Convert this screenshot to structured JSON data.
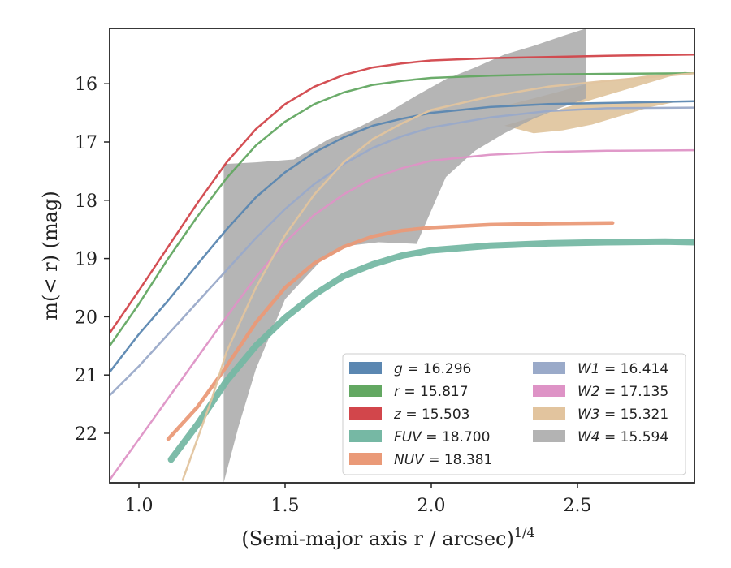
{
  "chart_data": {
    "type": "line",
    "title": "",
    "xlabel": "(Semi-major axis r / arcsec)",
    "xlabel_exponent": "1/4",
    "ylabel": "m(< r) (mag)",
    "xlim": [
      0.9,
      2.9
    ],
    "ylim": [
      22.85,
      15.05
    ],
    "y_inverted": true,
    "x_ticks": [
      {
        "value": 1.0,
        "label": "1.0"
      },
      {
        "value": 1.5,
        "label": "1.5"
      },
      {
        "value": 2.0,
        "label": "2.0"
      },
      {
        "value": 2.5,
        "label": "2.5"
      }
    ],
    "y_ticks": [
      {
        "value": 16,
        "label": "16"
      },
      {
        "value": 17,
        "label": "17"
      },
      {
        "value": 18,
        "label": "18"
      },
      {
        "value": 19,
        "label": "19"
      },
      {
        "value": 20,
        "label": "20"
      },
      {
        "value": 21,
        "label": "21"
      },
      {
        "value": 22,
        "label": "22"
      }
    ],
    "grid": false,
    "legend_position": "lower-right",
    "series": [
      {
        "name": "g",
        "label_value": "16.296",
        "color": "#5b87b1",
        "width": 2.5,
        "points": [
          [
            0.9,
            20.95
          ],
          [
            1.0,
            20.3
          ],
          [
            1.1,
            19.72
          ],
          [
            1.2,
            19.1
          ],
          [
            1.3,
            18.5
          ],
          [
            1.4,
            17.95
          ],
          [
            1.5,
            17.52
          ],
          [
            1.6,
            17.18
          ],
          [
            1.7,
            16.92
          ],
          [
            1.8,
            16.72
          ],
          [
            1.9,
            16.6
          ],
          [
            2.0,
            16.5
          ],
          [
            2.2,
            16.4
          ],
          [
            2.4,
            16.35
          ],
          [
            2.6,
            16.33
          ],
          [
            2.9,
            16.3
          ]
        ]
      },
      {
        "name": "r",
        "label_value": "15.817",
        "color": "#63a862",
        "width": 2.5,
        "points": [
          [
            0.9,
            20.5
          ],
          [
            1.0,
            19.78
          ],
          [
            1.1,
            19.0
          ],
          [
            1.2,
            18.28
          ],
          [
            1.3,
            17.62
          ],
          [
            1.4,
            17.06
          ],
          [
            1.5,
            16.65
          ],
          [
            1.6,
            16.35
          ],
          [
            1.7,
            16.15
          ],
          [
            1.8,
            16.02
          ],
          [
            1.9,
            15.95
          ],
          [
            2.0,
            15.9
          ],
          [
            2.2,
            15.86
          ],
          [
            2.4,
            15.84
          ],
          [
            2.6,
            15.83
          ],
          [
            2.9,
            15.82
          ]
        ]
      },
      {
        "name": "z",
        "label_value": "15.503",
        "color": "#d2464b",
        "width": 2.5,
        "points": [
          [
            0.9,
            20.28
          ],
          [
            1.0,
            19.55
          ],
          [
            1.1,
            18.8
          ],
          [
            1.2,
            18.05
          ],
          [
            1.3,
            17.35
          ],
          [
            1.4,
            16.78
          ],
          [
            1.5,
            16.35
          ],
          [
            1.6,
            16.05
          ],
          [
            1.7,
            15.85
          ],
          [
            1.8,
            15.72
          ],
          [
            1.9,
            15.65
          ],
          [
            2.0,
            15.6
          ],
          [
            2.2,
            15.56
          ],
          [
            2.4,
            15.54
          ],
          [
            2.6,
            15.52
          ],
          [
            2.9,
            15.5
          ]
        ]
      },
      {
        "name": "FUV",
        "label_value": "18.700",
        "color": "#76b8a4",
        "width": 8,
        "points": [
          [
            1.11,
            22.45
          ],
          [
            1.2,
            21.85
          ],
          [
            1.3,
            21.1
          ],
          [
            1.4,
            20.5
          ],
          [
            1.5,
            20.02
          ],
          [
            1.6,
            19.62
          ],
          [
            1.7,
            19.3
          ],
          [
            1.8,
            19.1
          ],
          [
            1.9,
            18.95
          ],
          [
            2.0,
            18.86
          ],
          [
            2.2,
            18.78
          ],
          [
            2.4,
            18.74
          ],
          [
            2.6,
            18.72
          ],
          [
            2.8,
            18.71
          ],
          [
            2.9,
            18.72
          ]
        ]
      },
      {
        "name": "NUV",
        "label_value": "18.381",
        "color": "#ea9a78",
        "width": 4.5,
        "points": [
          [
            1.1,
            22.1
          ],
          [
            1.2,
            21.55
          ],
          [
            1.3,
            20.85
          ],
          [
            1.4,
            20.1
          ],
          [
            1.5,
            19.5
          ],
          [
            1.6,
            19.08
          ],
          [
            1.7,
            18.8
          ],
          [
            1.8,
            18.62
          ],
          [
            1.9,
            18.52
          ],
          [
            2.0,
            18.47
          ],
          [
            2.2,
            18.42
          ],
          [
            2.4,
            18.4
          ],
          [
            2.62,
            18.39
          ]
        ]
      },
      {
        "name": "W1",
        "label_value": "16.414",
        "color": "#9aaac9",
        "width": 2.5,
        "points": [
          [
            0.9,
            21.35
          ],
          [
            1.0,
            20.85
          ],
          [
            1.1,
            20.3
          ],
          [
            1.2,
            19.75
          ],
          [
            1.3,
            19.2
          ],
          [
            1.4,
            18.65
          ],
          [
            1.5,
            18.15
          ],
          [
            1.6,
            17.72
          ],
          [
            1.7,
            17.38
          ],
          [
            1.8,
            17.1
          ],
          [
            1.9,
            16.9
          ],
          [
            2.0,
            16.75
          ],
          [
            2.2,
            16.58
          ],
          [
            2.4,
            16.47
          ],
          [
            2.6,
            16.42
          ],
          [
            2.9,
            16.41
          ]
        ]
      },
      {
        "name": "W2",
        "label_value": "17.135",
        "color": "#de93c6",
        "width": 2.5,
        "points": [
          [
            0.9,
            22.8
          ],
          [
            1.0,
            22.1
          ],
          [
            1.1,
            21.4
          ],
          [
            1.2,
            20.7
          ],
          [
            1.3,
            20.0
          ],
          [
            1.4,
            19.32
          ],
          [
            1.5,
            18.72
          ],
          [
            1.6,
            18.25
          ],
          [
            1.7,
            17.9
          ],
          [
            1.8,
            17.62
          ],
          [
            1.9,
            17.45
          ],
          [
            2.0,
            17.32
          ],
          [
            2.2,
            17.22
          ],
          [
            2.4,
            17.17
          ],
          [
            2.6,
            17.15
          ],
          [
            2.9,
            17.14
          ]
        ]
      },
      {
        "name": "W3",
        "label_value": "15.321",
        "color": "#e2c49e",
        "width": 2.5,
        "points": [
          [
            1.15,
            22.8
          ],
          [
            1.25,
            21.4
          ],
          [
            1.3,
            20.6
          ],
          [
            1.4,
            19.5
          ],
          [
            1.5,
            18.6
          ],
          [
            1.6,
            17.9
          ],
          [
            1.7,
            17.35
          ],
          [
            1.8,
            16.95
          ],
          [
            1.9,
            16.68
          ],
          [
            2.0,
            16.45
          ],
          [
            2.2,
            16.22
          ],
          [
            2.4,
            16.05
          ],
          [
            2.6,
            15.95
          ],
          [
            2.9,
            15.82
          ]
        ]
      }
    ],
    "bands": [
      {
        "name": "W3",
        "color": "#dfc39b",
        "opacity": 0.9,
        "upper": [
          [
            2.25,
            16.38
          ],
          [
            2.35,
            16.25
          ],
          [
            2.45,
            16.12
          ],
          [
            2.55,
            15.98
          ],
          [
            2.65,
            15.92
          ],
          [
            2.75,
            15.85
          ],
          [
            2.85,
            15.82
          ],
          [
            2.9,
            15.75
          ]
        ],
        "lower": [
          [
            2.25,
            16.72
          ],
          [
            2.35,
            16.85
          ],
          [
            2.45,
            16.8
          ],
          [
            2.55,
            16.7
          ],
          [
            2.65,
            16.55
          ],
          [
            2.75,
            16.4
          ],
          [
            2.85,
            16.3
          ],
          [
            2.9,
            16.3
          ]
        ]
      },
      {
        "name": "W4",
        "color": "#a8a8a8",
        "opacity": 0.85,
        "upper": [
          [
            1.29,
            17.38
          ],
          [
            1.4,
            17.35
          ],
          [
            1.53,
            17.3
          ],
          [
            1.65,
            16.95
          ],
          [
            1.75,
            16.75
          ],
          [
            1.85,
            16.5
          ],
          [
            1.95,
            16.2
          ],
          [
            2.05,
            15.92
          ],
          [
            2.15,
            15.72
          ],
          [
            2.25,
            15.5
          ],
          [
            2.35,
            15.35
          ],
          [
            2.45,
            15.18
          ],
          [
            2.53,
            15.05
          ]
        ],
        "lower": [
          [
            2.53,
            16.25
          ],
          [
            2.45,
            16.4
          ],
          [
            2.35,
            16.6
          ],
          [
            2.25,
            16.85
          ],
          [
            2.15,
            17.15
          ],
          [
            2.05,
            17.6
          ],
          [
            1.95,
            18.75
          ],
          [
            1.82,
            18.72
          ],
          [
            1.72,
            18.78
          ],
          [
            1.62,
            19.05
          ],
          [
            1.5,
            19.7
          ],
          [
            1.4,
            20.9
          ],
          [
            1.34,
            21.9
          ],
          [
            1.29,
            22.85
          ]
        ]
      }
    ],
    "legend": {
      "columns": [
        [
          {
            "var": "g",
            "text": " = 16.296",
            "color": "#5b87b1"
          },
          {
            "var": "r",
            "text": " = 15.817",
            "color": "#63a862"
          },
          {
            "var": "z",
            "text": " = 15.503",
            "color": "#d2464b"
          },
          {
            "var": "FUV",
            "text": " = 18.700",
            "color": "#76b8a4"
          },
          {
            "var": "NUV",
            "text": " = 18.381",
            "color": "#ea9a78"
          }
        ],
        [
          {
            "var": "W1",
            "text": " = 16.414",
            "color": "#9aaac9"
          },
          {
            "var": "W2",
            "text": " = 17.135",
            "color": "#de93c6"
          },
          {
            "var": "W3",
            "text": " = 15.321",
            "color": "#e2c49e"
          },
          {
            "var": "W4",
            "text": " = 15.594",
            "color": "#b3b3b3"
          }
        ]
      ]
    }
  }
}
